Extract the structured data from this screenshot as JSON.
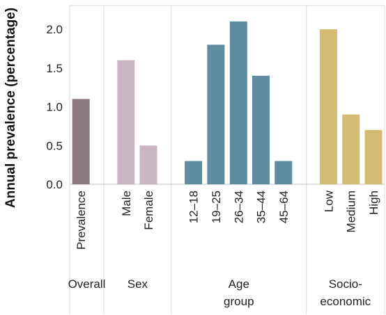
{
  "chart_data": {
    "type": "bar",
    "ylabel": "Annual prevalence (percentage)",
    "ylim": [
      0,
      2.2
    ],
    "yticks": [
      "0.0",
      "0.5",
      "1.0",
      "1.5",
      "2.0"
    ],
    "grid": "vertical separators",
    "groups": [
      {
        "name": "Overall",
        "color": "#8c7a80",
        "categories": [
          "Prevalence"
        ],
        "values": [
          1.1
        ]
      },
      {
        "name": "Sex",
        "color": "#c9b6c2",
        "categories": [
          "Male",
          "Female"
        ],
        "values": [
          1.6,
          0.5
        ]
      },
      {
        "name": "Age group",
        "name_lines": [
          "Age",
          "group"
        ],
        "color": "#5f8c9e",
        "categories": [
          "12–18",
          "19–25",
          "26–34",
          "35–44",
          "45–64"
        ],
        "values": [
          0.3,
          1.8,
          2.1,
          1.4,
          0.3
        ]
      },
      {
        "name": "Socio-economic",
        "name_lines": [
          "Socio-",
          "economic"
        ],
        "color": "#d5bc72",
        "categories": [
          "Low",
          "Medium",
          "High"
        ],
        "values": [
          2.0,
          0.9,
          0.7
        ]
      }
    ]
  }
}
